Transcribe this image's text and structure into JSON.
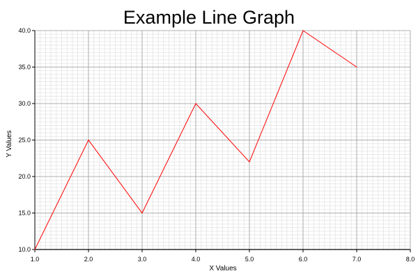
{
  "chart_data": {
    "type": "line",
    "title": "Example Line Graph",
    "xlabel": "X Values",
    "ylabel": "Y Values",
    "xlim": [
      1.0,
      8.0
    ],
    "ylim": [
      10.0,
      40.0
    ],
    "x_ticks": [
      "1.0",
      "2.0",
      "3.0",
      "4.0",
      "5.0",
      "6.0",
      "7.0",
      "8.0"
    ],
    "y_ticks": [
      "10.0",
      "15.0",
      "20.0",
      "25.0",
      "30.0",
      "35.0",
      "40.0"
    ],
    "grid": true,
    "series": [
      {
        "x": [
          1,
          2,
          3,
          4,
          5,
          6,
          7
        ],
        "y": [
          10,
          25,
          15,
          30,
          22,
          40,
          35
        ],
        "color": "#ff0000"
      }
    ]
  }
}
